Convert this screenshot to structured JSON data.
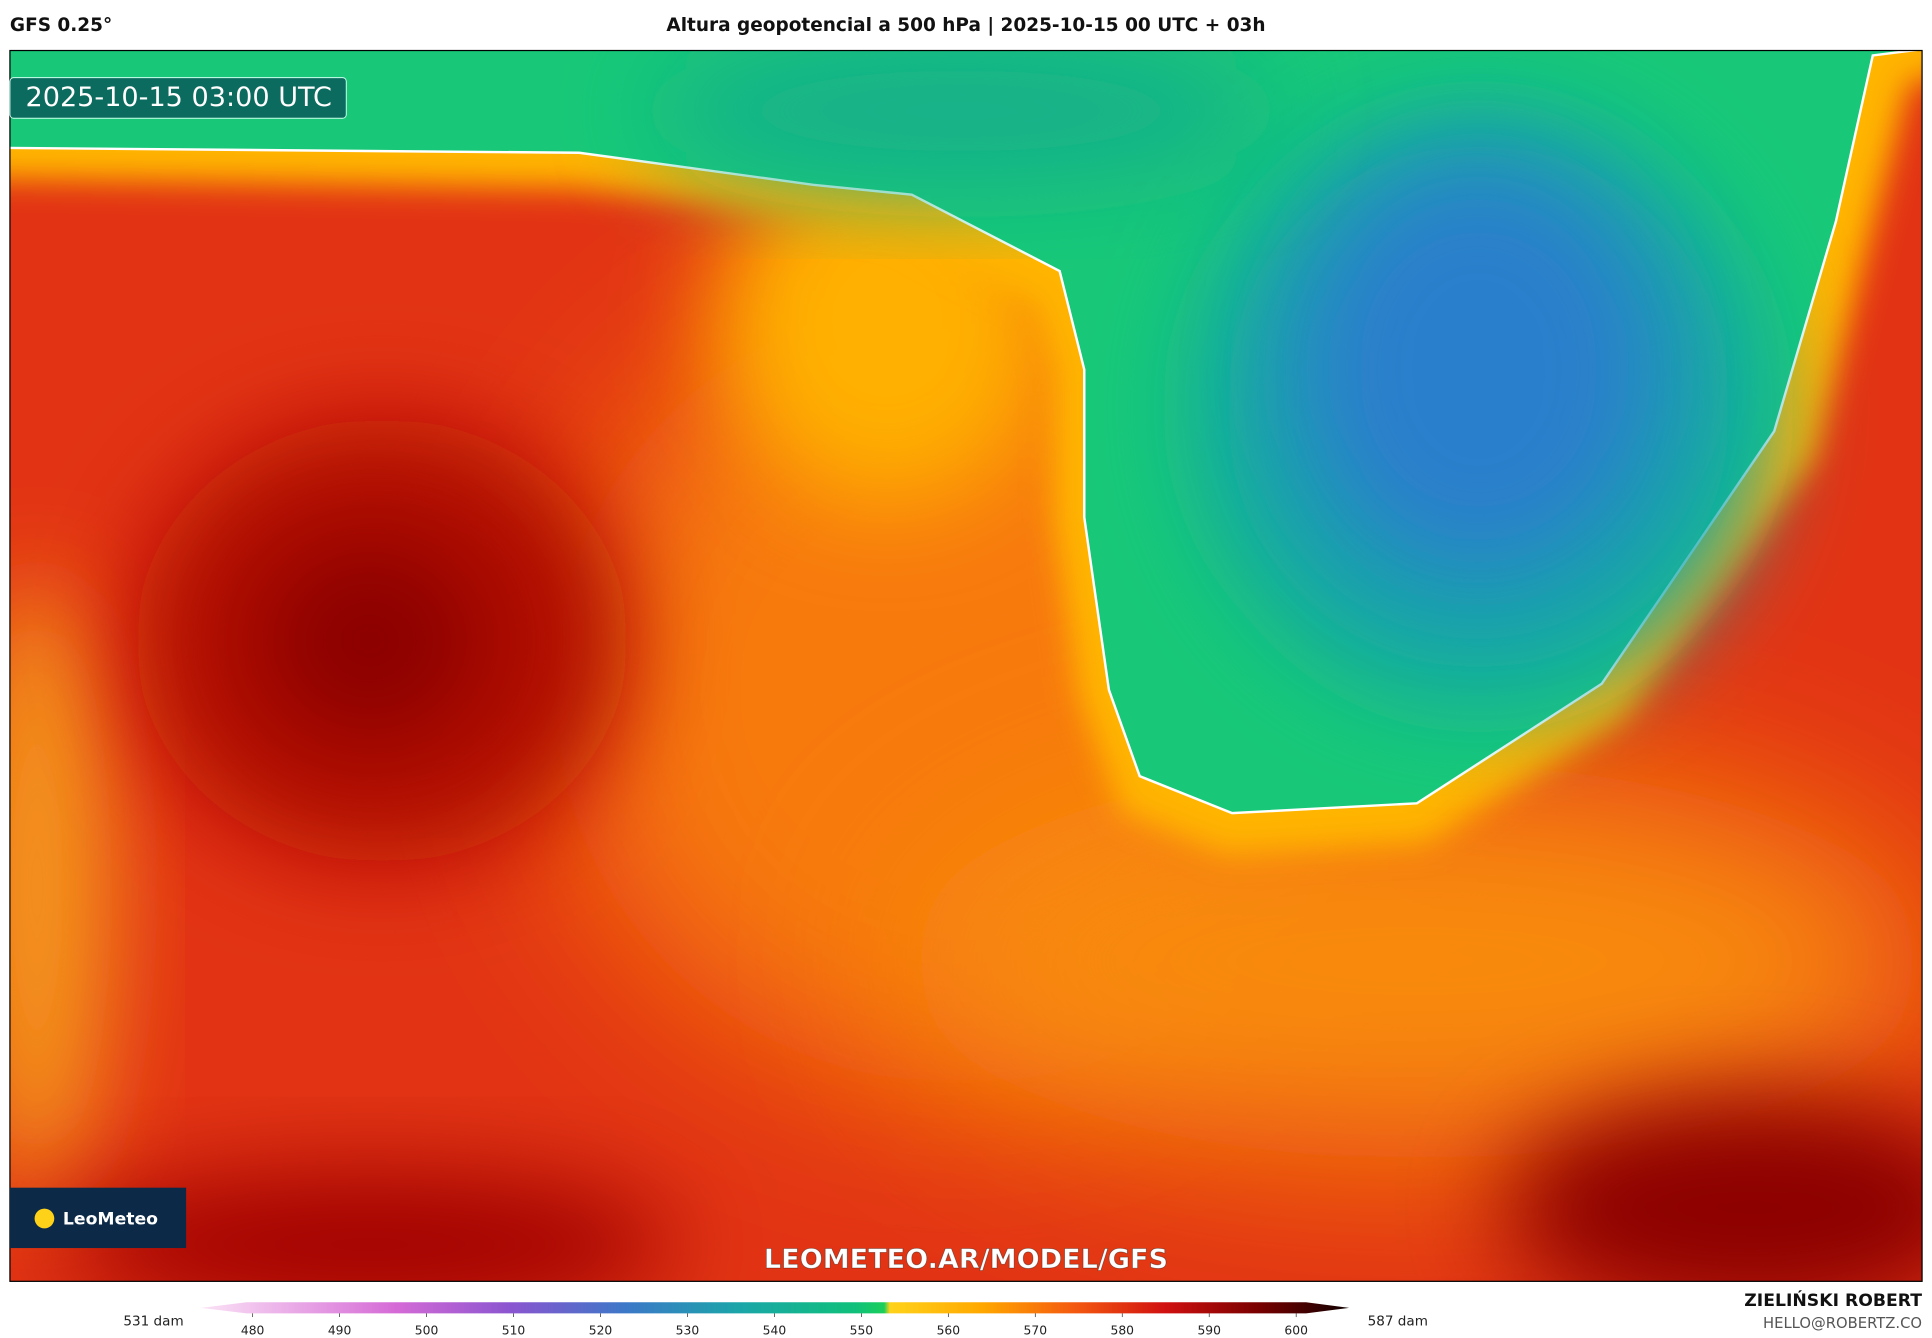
{
  "header": {
    "model": "GFS 0.25°",
    "title": "Altura geopotencial a 500 hPa | 2025-10-15 00 UTC + 03h"
  },
  "map": {
    "timestamp": "2025-10-15 03:00 UTC",
    "logo": "LeoMeteo",
    "watermark": "LEOMETEO.AR/MODEL/GFS"
  },
  "colorbar": {
    "min_label": "531 dam",
    "max_label": "587 dam",
    "ticks": [
      480,
      490,
      500,
      510,
      520,
      530,
      540,
      550,
      560,
      570,
      580,
      590,
      600
    ]
  },
  "footer": {
    "author": "ZIELIŃSKI ROBERT",
    "contact": "HELLO@ROBERTZ.CO"
  }
}
